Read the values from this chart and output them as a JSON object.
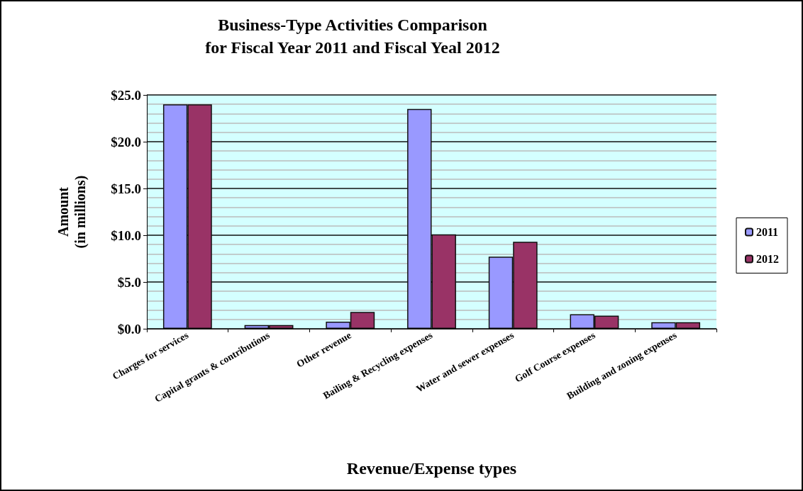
{
  "chart_data": {
    "type": "bar",
    "title": "Business-Type Activities Comparison\nfor Fiscal Year 2011 and Fiscal Yeal 2012",
    "xlabel": "Revenue/Expense types",
    "ylabel": "Amount\n(in millions)",
    "categories": [
      "Charges for services",
      "Capital grants & contributions",
      "Other revenue",
      "Bailing & Recycling expenses",
      "Water and sewer expenses",
      "Golf Course expenses",
      "Building and zoning expenses"
    ],
    "series": [
      {
        "name": "2011",
        "color": "#9999ff",
        "values": [
          24.0,
          0.4,
          0.75,
          23.5,
          7.7,
          1.55,
          0.7
        ]
      },
      {
        "name": "2012",
        "color": "#993366",
        "values": [
          24.0,
          0.4,
          1.8,
          10.1,
          9.3,
          1.4,
          0.7
        ]
      }
    ],
    "ylim": [
      0,
      25
    ],
    "yticks": [
      {
        "value": 0,
        "label": "$0.0"
      },
      {
        "value": 5,
        "label": "$5.0"
      },
      {
        "value": 10,
        "label": "$10.0"
      },
      {
        "value": 15,
        "label": "$15.0"
      },
      {
        "value": 20,
        "label": "$20.0"
      },
      {
        "value": 25,
        "label": "$25.0"
      }
    ],
    "grid": "y",
    "legend": "right"
  }
}
